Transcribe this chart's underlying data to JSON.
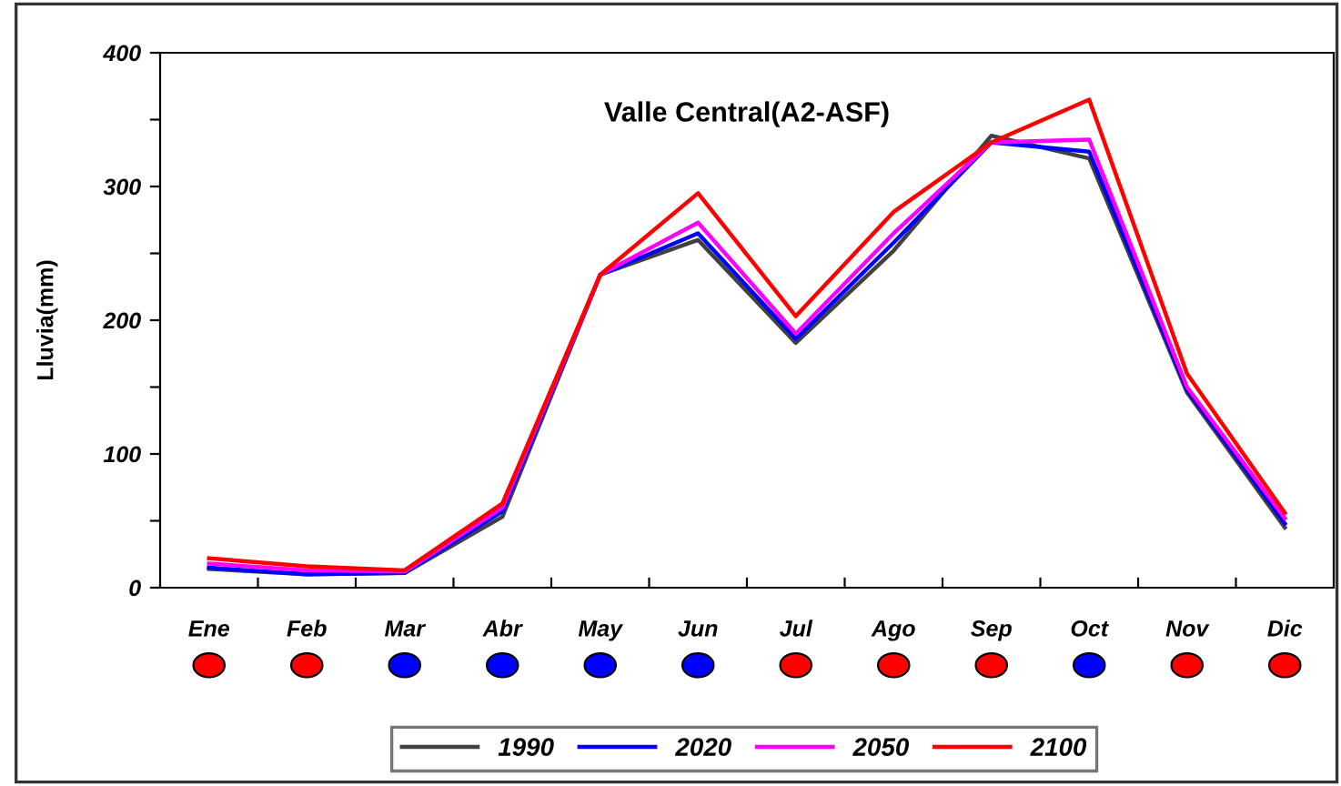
{
  "chart_data": {
    "type": "line",
    "title": "Valle Central(A2-ASF)",
    "ylabel": "Lluvia(mm)",
    "categories": [
      "Ene",
      "Feb",
      "Mar",
      "Abr",
      "May",
      "Jun",
      "Jul",
      "Ago",
      "Sep",
      "Oct",
      "Nov",
      "Dic"
    ],
    "series": [
      {
        "name": "1990",
        "color": "#404040",
        "values": [
          14,
          10,
          11,
          53,
          234,
          260,
          183,
          252,
          338,
          321,
          146,
          45
        ]
      },
      {
        "name": "2020",
        "color": "#0000ff",
        "values": [
          15,
          10,
          11,
          57,
          234,
          265,
          186,
          258,
          333,
          326,
          148,
          48
        ]
      },
      {
        "name": "2050",
        "color": "#ff00ff",
        "values": [
          18,
          13,
          12,
          60,
          234,
          273,
          190,
          265,
          333,
          335,
          150,
          52
        ]
      },
      {
        "name": "2100",
        "color": "#ff0000",
        "values": [
          22,
          16,
          13,
          63,
          234,
          295,
          203,
          281,
          333,
          365,
          160,
          56
        ]
      }
    ],
    "ylim": [
      0,
      400
    ],
    "yticks": [
      0,
      {
        "value": 50,
        "label": null
      },
      100,
      {
        "value": 150,
        "label": null
      },
      200,
      {
        "value": 250,
        "label": null
      },
      300,
      {
        "value": 350,
        "label": null
      },
      400
    ],
    "grid": false,
    "legend": "bottom",
    "marker": "none",
    "line_style": "solid"
  }
}
